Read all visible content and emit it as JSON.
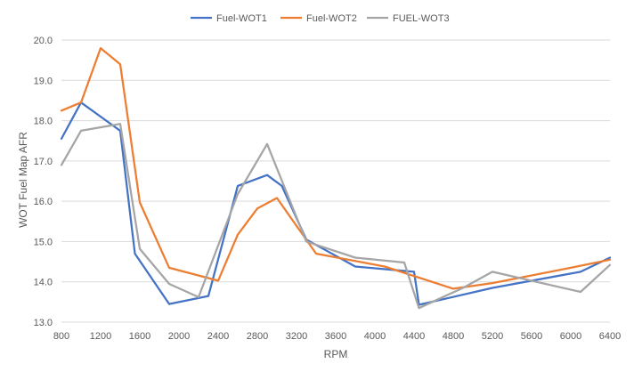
{
  "chart_data": {
    "type": "line",
    "title": "",
    "xlabel": "RPM",
    "ylabel": "WOT Fuel Map AFR",
    "xlim": [
      800,
      6400
    ],
    "ylim": [
      13.0,
      20.0
    ],
    "x_ticks": [
      800,
      1200,
      1600,
      2000,
      2400,
      2800,
      3200,
      3600,
      4000,
      4400,
      4800,
      5200,
      5600,
      6000,
      6400
    ],
    "y_ticks": [
      13.0,
      14.0,
      15.0,
      16.0,
      17.0,
      18.0,
      19.0,
      20.0
    ],
    "y_tick_labels": [
      "13.0",
      "14.0",
      "15.0",
      "16.0",
      "17.0",
      "18.0",
      "19.0",
      "20.0"
    ],
    "grid": "horizontal",
    "legend": "top-center",
    "series": [
      {
        "name": "Fuel-WOT1",
        "color": "#4472C4",
        "x": [
          800,
          1000,
          1400,
          1550,
          1900,
          2300,
          2600,
          2900,
          3050,
          3300,
          3800,
          4400,
          4450,
          5200,
          6100,
          6400
        ],
        "y": [
          17.55,
          18.45,
          17.75,
          14.7,
          13.45,
          13.65,
          16.38,
          16.65,
          16.38,
          15.05,
          14.38,
          14.25,
          13.43,
          13.85,
          14.25,
          14.6
        ]
      },
      {
        "name": "Fuel-WOT2",
        "color": "#ED7D31",
        "x": [
          800,
          1000,
          1200,
          1400,
          1600,
          1900,
          2400,
          2600,
          2800,
          3000,
          3400,
          4100,
          4800,
          5200,
          6000,
          6400
        ],
        "y": [
          18.25,
          18.45,
          19.8,
          19.4,
          15.97,
          14.35,
          14.03,
          15.17,
          15.82,
          16.08,
          14.7,
          14.38,
          13.83,
          13.97,
          14.35,
          14.55
        ]
      },
      {
        "name": "FUEL-WOT3",
        "color": "#A5A5A5",
        "x": [
          800,
          1000,
          1400,
          1600,
          1900,
          2200,
          2600,
          2900,
          3300,
          3800,
          4300,
          4450,
          4900,
          5200,
          6100,
          6400
        ],
        "y": [
          16.9,
          17.75,
          17.92,
          14.82,
          13.95,
          13.62,
          16.18,
          17.42,
          15.0,
          14.6,
          14.48,
          13.35,
          13.85,
          14.25,
          13.75,
          14.42
        ]
      }
    ]
  }
}
